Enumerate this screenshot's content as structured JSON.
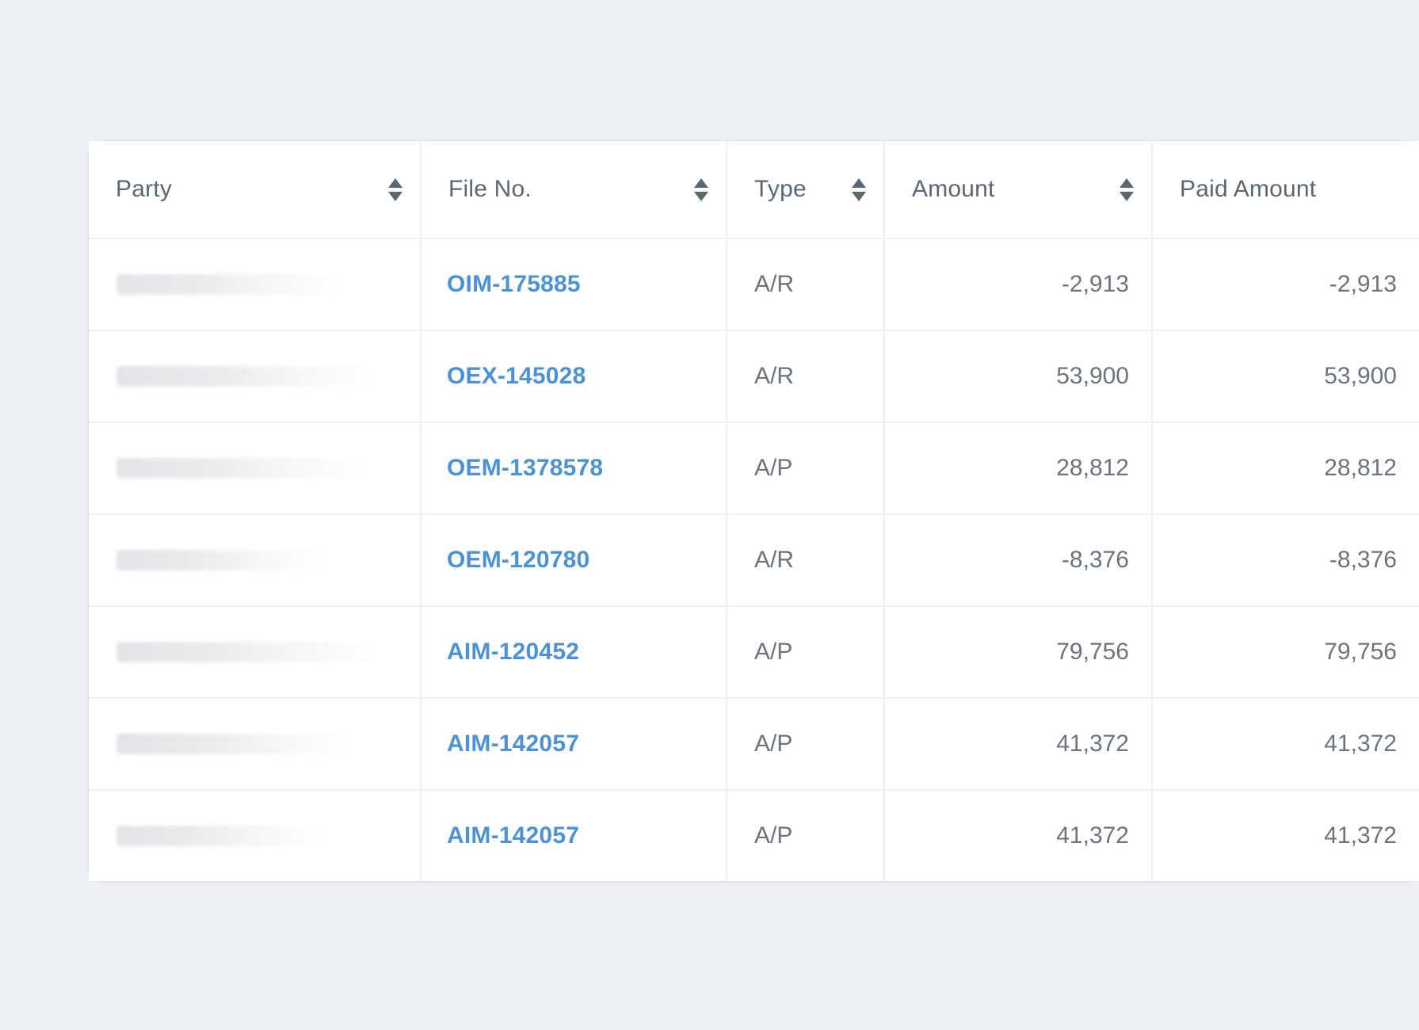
{
  "page": {
    "background_color": "#edf1f6"
  },
  "table": {
    "columns": [
      {
        "key": "party",
        "label": "Party",
        "sortable": true,
        "align": "left"
      },
      {
        "key": "file_no",
        "label": "File No.",
        "sortable": true,
        "align": "left"
      },
      {
        "key": "type",
        "label": "Type",
        "sortable": true,
        "align": "left"
      },
      {
        "key": "amount",
        "label": "Amount",
        "sortable": true,
        "align": "right"
      },
      {
        "key": "paid_amount",
        "label": "Paid Amount",
        "sortable": false,
        "align": "right"
      }
    ],
    "rows": [
      {
        "party_redacted": true,
        "file_no": "OIM-175885",
        "type": "A/R",
        "amount": "-2,913",
        "paid_amount": "-2,913"
      },
      {
        "party_redacted": true,
        "file_no": "OEX-145028",
        "type": "A/R",
        "amount": "53,900",
        "paid_amount": "53,900"
      },
      {
        "party_redacted": true,
        "file_no": "OEM-1378578",
        "type": "A/P",
        "amount": "28,812",
        "paid_amount": "28,812"
      },
      {
        "party_redacted": true,
        "file_no": "OEM-120780",
        "type": "A/R",
        "amount": "-8,376",
        "paid_amount": "-8,376"
      },
      {
        "party_redacted": true,
        "file_no": "AIM-120452",
        "type": "A/P",
        "amount": "79,756",
        "paid_amount": "79,756"
      },
      {
        "party_redacted": true,
        "file_no": "AIM-142057",
        "type": "A/P",
        "amount": "41,372",
        "paid_amount": "41,372"
      },
      {
        "party_redacted": true,
        "file_no": "AIM-142057",
        "type": "A/P",
        "amount": "41,372",
        "paid_amount": "41,372"
      }
    ],
    "redacted_bar_widths": [
      285,
      330,
      308,
      262,
      330,
      295,
      262
    ],
    "colors": {
      "link_blue": "#4c92d4",
      "header_text": "#5d6772",
      "cell_text": "#6b737e",
      "row_border": "#eef0f3",
      "column_border": "#edeff2",
      "card_background": "#ffffff"
    }
  }
}
